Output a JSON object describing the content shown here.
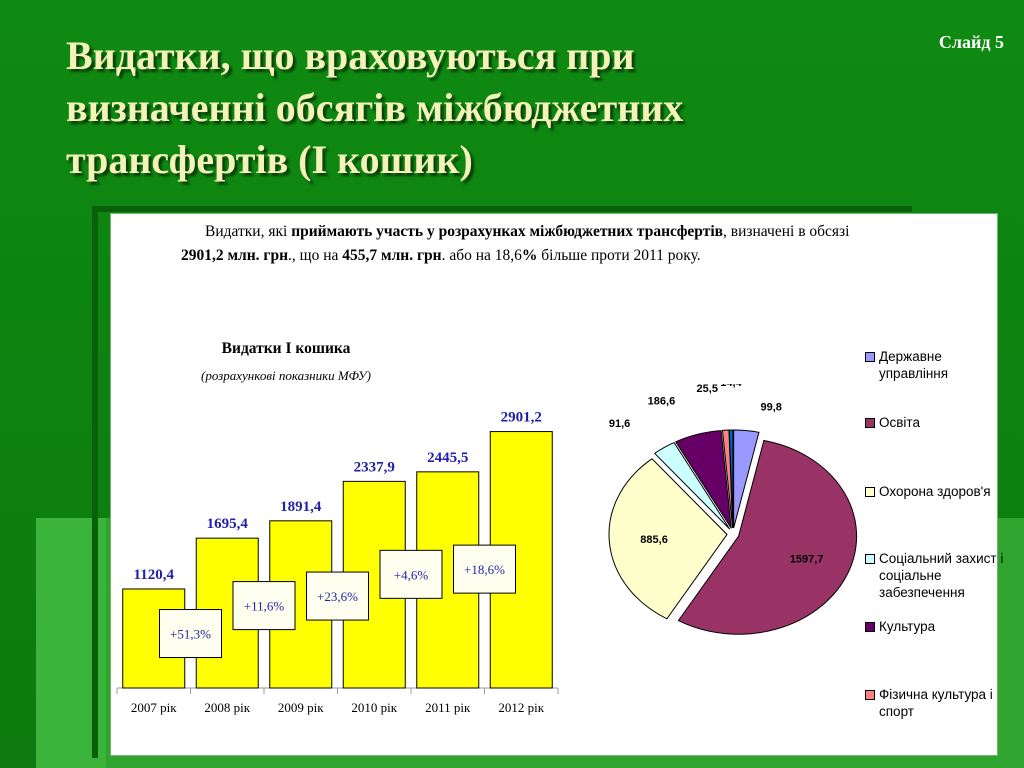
{
  "slide": {
    "title": "Видатки, що враховуються при визначенні обсягів  міжбюджетних трансфертів (І кошик)",
    "slide_number": "Слайд 5"
  },
  "intro": {
    "p1": "Видатки, які ",
    "b1": "приймають участь у розрахунках міжбюджетних трансфертів",
    "p2": ", визначені в обсязі ",
    "b2": "2901,2 млн. грн",
    "p3": "., що на ",
    "b3": "455,7 млн. грн",
    "p4": ". або на 18,6",
    "b4": "%",
    "p5": " більше проти 2011 року."
  },
  "colors": {
    "bar_fill": "#ffff00",
    "bar_value_text": "#1f1fa8",
    "growth_text": "#1f1fa8",
    "background": "#0f8a12",
    "title_text": "#f3f3b8"
  },
  "chart_data": [
    {
      "type": "bar",
      "title": "Видатки І кошика",
      "subtitle": "(розрахункові показники МФУ)",
      "categories": [
        "2007 рік",
        "2008 рік",
        "2009 рік",
        "2010 рік",
        "2011 рік",
        "2012 рік"
      ],
      "values": [
        1120.4,
        1695.4,
        1891.4,
        2337.9,
        2445.5,
        2901.2
      ],
      "value_labels": [
        "1120,4",
        "1695,4",
        "1891,4",
        "2337,9",
        "2445,5",
        "2901,2"
      ],
      "growth_labels": [
        "+51,3%",
        "+11,6%",
        "+23,6%",
        "+4,6%",
        "+18,6%"
      ],
      "ylim": [
        0,
        3100
      ],
      "grid": false,
      "legend": "none"
    },
    {
      "type": "pie",
      "slices": [
        {
          "name": "Державне управління",
          "value": 99.8,
          "label": "99,8",
          "color": "#9999ff"
        },
        {
          "name": "Освіта",
          "value": 1597.7,
          "label": "1597,7",
          "color": "#993366"
        },
        {
          "name": "Охорона здоров'я",
          "value": 885.6,
          "label": "885,6",
          "color": "#ffffcc"
        },
        {
          "name": "Соціальний захист і соціальне забезпечення",
          "value": 91.6,
          "label": "91,6",
          "color": "#ccffff"
        },
        {
          "name": "Культура",
          "value": 186.6,
          "label": "186,6",
          "color": "#660066"
        },
        {
          "name": "Фізична культура і спорт",
          "value": 25.5,
          "label": "25,5",
          "color": "#ff8080"
        },
        {
          "name": "",
          "value": 14.4,
          "label": "14,4",
          "color": "#0066cc"
        }
      ],
      "legend": "right",
      "legend_items": [
        "Державне управління",
        "Освіта",
        "Охорона здоров'я",
        "Соціальний захист і соціальне забезпечення",
        "Культура",
        "Фізична культура і спорт"
      ]
    }
  ]
}
